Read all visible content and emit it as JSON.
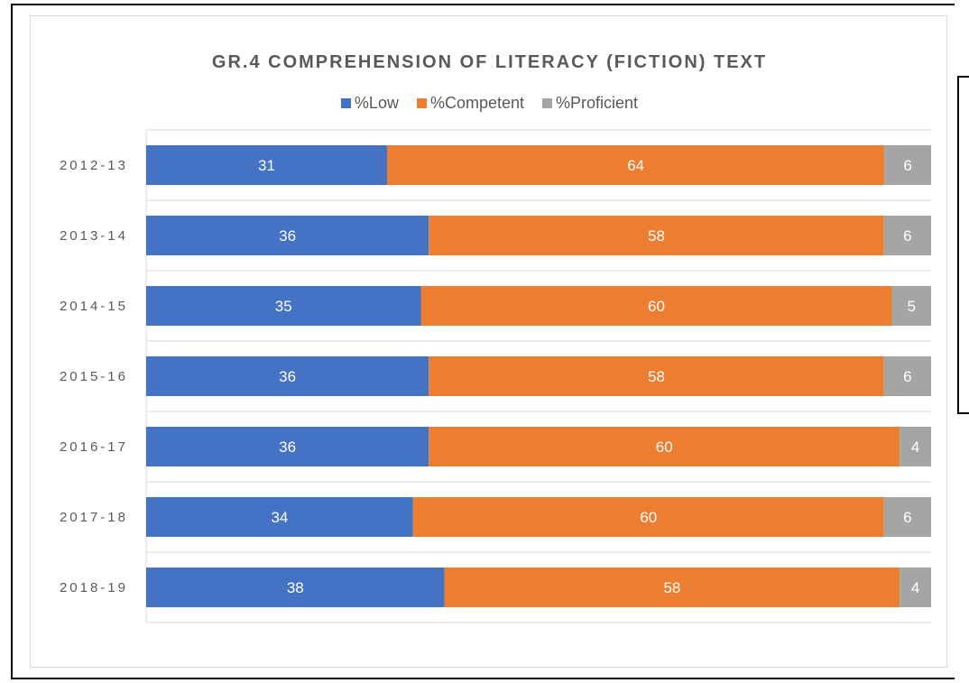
{
  "chart_data": {
    "type": "bar",
    "orientation": "horizontal",
    "stacked": true,
    "title": "GR.4 COMPREHENSION OF LITERACY (FICTION) TEXT",
    "categories": [
      "2012-13",
      "2013-14",
      "2014-15",
      "2015-16",
      "2016-17",
      "2017-18",
      "2018-19"
    ],
    "series": [
      {
        "name": "%Low",
        "color": "#4472c4",
        "values": [
          31,
          36,
          35,
          36,
          36,
          34,
          38
        ]
      },
      {
        "name": "%Competent",
        "color": "#ed7d31",
        "values": [
          64,
          58,
          60,
          58,
          60,
          60,
          58
        ]
      },
      {
        "name": "%Proficient",
        "color": "#a5a5a5",
        "values": [
          6,
          6,
          5,
          6,
          4,
          6,
          4
        ]
      }
    ],
    "legend_position": "top",
    "grid": true,
    "data_labels": true
  }
}
